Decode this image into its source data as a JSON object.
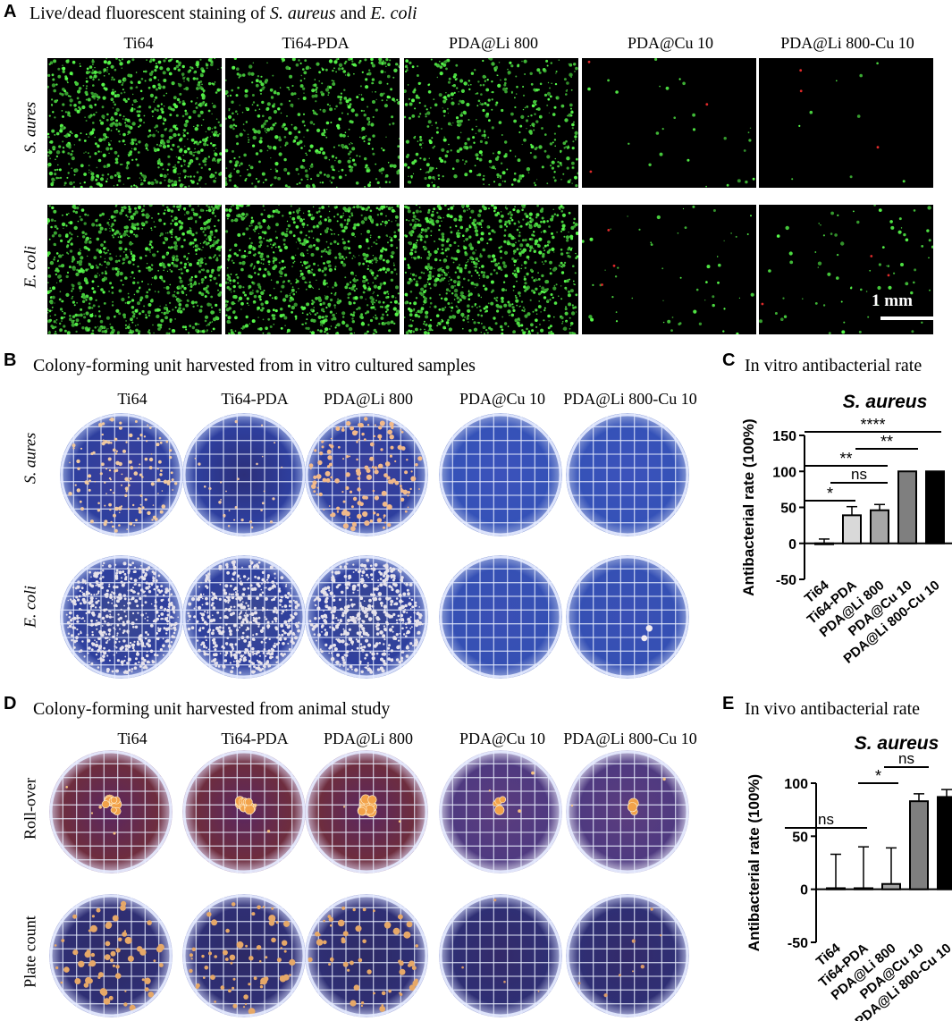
{
  "panelA": {
    "letter": "A",
    "title_prefix": "Live/dead fluorescent staining of ",
    "title_sa": "S. aureus",
    "title_and": " and ",
    "title_ec": "E. coli",
    "columns": [
      "Ti64",
      "Ti64-PDA",
      "PDA@Li 800",
      "PDA@Cu 10",
      "PDA@Li 800-Cu 10"
    ],
    "rows": [
      "S. aures",
      "E. coli"
    ],
    "scale_bar": "1 mm",
    "density": [
      [
        0.9,
        0.6,
        0.55,
        0.03,
        0.01
      ],
      [
        1.0,
        0.95,
        1.0,
        0.06,
        0.08
      ]
    ]
  },
  "panelB": {
    "letter": "B",
    "title": "Colony-forming unit harvested from in vitro cultured samples",
    "columns": [
      "Ti64",
      "Ti64-PDA",
      "PDA@Li 800",
      "PDA@Cu 10",
      "PDA@Li 800-Cu 10"
    ],
    "rows": [
      "S. aures",
      "E. coli"
    ]
  },
  "panelC": {
    "letter": "C",
    "title": "In vitro antibacterial rate"
  },
  "panelD": {
    "letter": "D",
    "title": "Colony-forming unit harvested from animal study",
    "columns": [
      "Ti64",
      "Ti64-PDA",
      "PDA@Li 800",
      "PDA@Cu 10",
      "PDA@Li 800-Cu 10"
    ],
    "rows": [
      "Roll-over",
      "Plate count"
    ]
  },
  "panelE": {
    "letter": "E",
    "title": "In vivo antibacterial rate"
  },
  "chart_data": [
    {
      "type": "bar",
      "title": "S. aureus",
      "ylabel": "Antibacterial rate (100%)",
      "categories": [
        "Ti64",
        "Ti64-PDA",
        "PDA@Li 800",
        "PDA@Cu 10",
        "PDA@Li 800-Cu 10"
      ],
      "values": [
        0,
        39,
        46,
        100,
        100
      ],
      "errors": [
        6,
        12,
        8,
        0,
        0
      ],
      "ylim": [
        -50,
        150
      ],
      "yticks": [
        -50,
        0,
        50,
        100,
        150
      ],
      "colors": [
        "#ffffff",
        "#d9d9d9",
        "#a6a6a6",
        "#7f7f7f",
        "#000000"
      ],
      "significance": [
        {
          "from": 0,
          "to": 1,
          "label": "*"
        },
        {
          "from": 1,
          "to": 2,
          "label": "ns"
        },
        {
          "from": 0,
          "to": 2,
          "label": "**"
        },
        {
          "from": 2,
          "to": 3,
          "label": "**"
        },
        {
          "from": 0,
          "to": 4,
          "label": "****"
        }
      ]
    },
    {
      "type": "bar",
      "title": "S. aureus",
      "ylabel": "Antibacterial rate (100%)",
      "categories": [
        "Ti64",
        "Ti64-PDA",
        "PDA@Li 800",
        "PDA@Cu 10",
        "PDA@Li 800-Cu 10"
      ],
      "values": [
        1,
        1,
        5,
        83,
        87
      ],
      "errors": [
        32,
        39,
        34,
        7,
        7
      ],
      "ylim": [
        -50,
        100
      ],
      "yticks": [
        -50,
        0,
        50,
        100
      ],
      "colors": [
        "#ffffff",
        "#d9d9d9",
        "#a6a6a6",
        "#7f7f7f",
        "#000000"
      ],
      "significance": [
        {
          "from": 0,
          "to": 2,
          "label": "ns"
        },
        {
          "from": 2,
          "to": 3,
          "label": "*"
        },
        {
          "from": 3,
          "to": 4,
          "label": "ns"
        }
      ]
    }
  ]
}
